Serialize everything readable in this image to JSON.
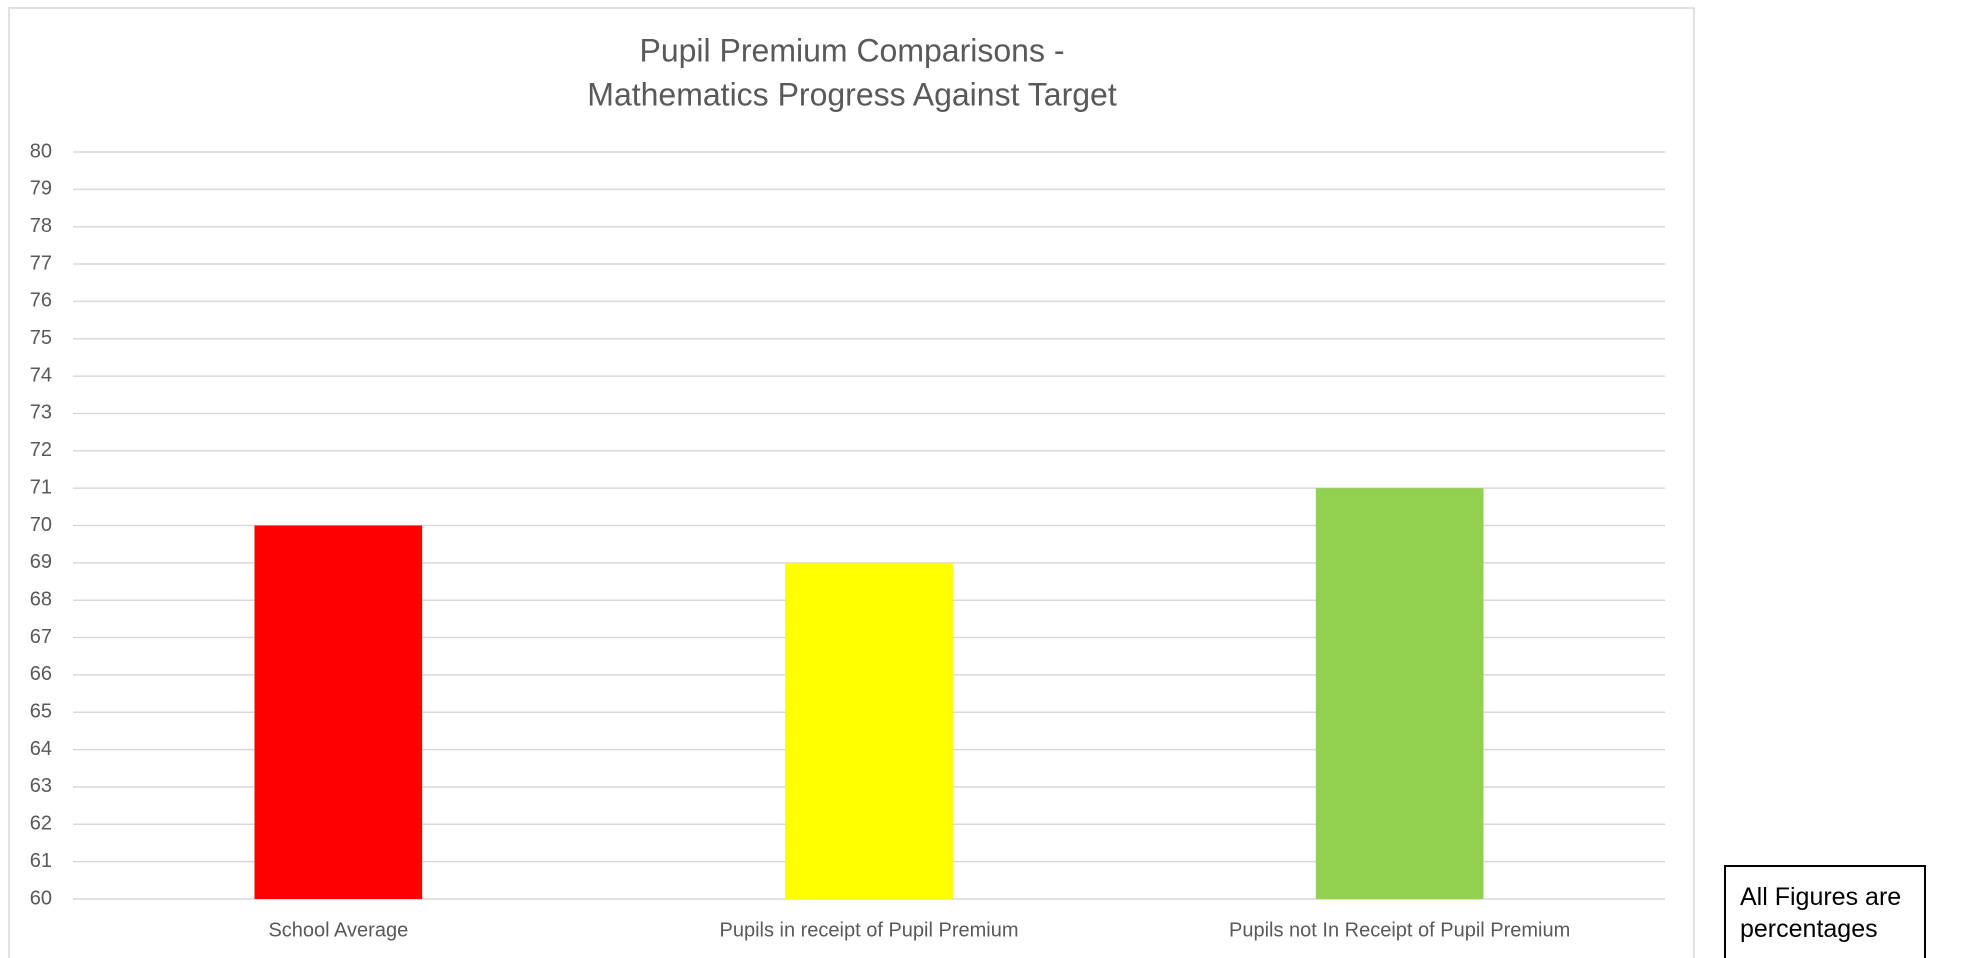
{
  "chart_data": {
    "type": "bar",
    "title": [
      "Pupil Premium Comparisons -",
      "Mathematics Progress Against Target"
    ],
    "categories": [
      "School Average",
      "Pupils in receipt of Pupil Premium",
      "Pupils not In Receipt of Pupil Premium"
    ],
    "values": [
      70,
      69,
      71
    ],
    "colors": [
      "#ff0000",
      "#ffff00",
      "#92d050"
    ],
    "ylim": [
      60,
      80
    ],
    "yticks": [
      60,
      61,
      62,
      63,
      64,
      65,
      66,
      67,
      68,
      69,
      70,
      71,
      72,
      73,
      74,
      75,
      76,
      77,
      78,
      79,
      80
    ],
    "grid": true,
    "annotation": "All Figures are percentages"
  }
}
